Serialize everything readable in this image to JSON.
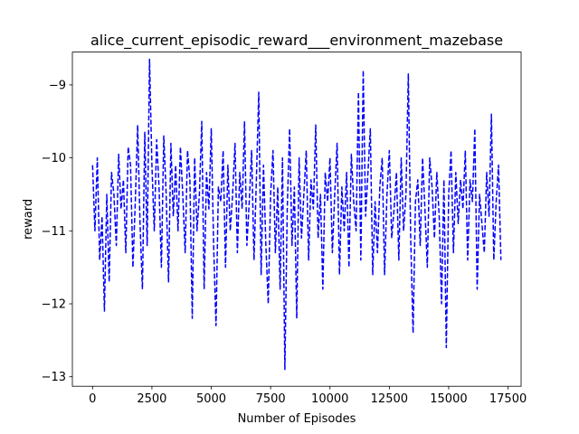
{
  "chart_data": {
    "type": "line",
    "title": "alice_current_episodic_reward___environment_mazebase",
    "xlabel": "Number of Episodes",
    "ylabel": "reward",
    "xlim": [
      -850,
      18050
    ],
    "ylim": [
      -13.13,
      -8.55
    ],
    "xticks": [
      0,
      2500,
      5000,
      7500,
      10000,
      12500,
      15000,
      17500
    ],
    "yticks": [
      -13,
      -12,
      -11,
      -10,
      -9
    ],
    "grid": false,
    "legend": "none",
    "series": [
      {
        "color": "#0000ff",
        "linestyle": "dashed",
        "x_start": 0,
        "x_step": 100,
        "values": [
          -10.1,
          -11.0,
          -10.0,
          -11.4,
          -10.8,
          -12.1,
          -10.5,
          -11.7,
          -10.2,
          -10.5,
          -11.2,
          -9.95,
          -10.7,
          -10.3,
          -11.3,
          -9.85,
          -10.1,
          -11.5,
          -10.6,
          -9.55,
          -10.9,
          -11.8,
          -9.65,
          -11.2,
          -8.65,
          -10.1,
          -11.0,
          -9.75,
          -10.4,
          -11.5,
          -9.7,
          -10.5,
          -11.7,
          -9.8,
          -10.8,
          -10.1,
          -11.0,
          -9.85,
          -10.5,
          -11.3,
          -9.9,
          -10.3,
          -12.2,
          -10.0,
          -11.0,
          -10.5,
          -9.5,
          -11.8,
          -10.2,
          -10.7,
          -9.6,
          -11.2,
          -12.3,
          -10.4,
          -10.6,
          -9.9,
          -11.5,
          -10.1,
          -11.0,
          -10.5,
          -9.8,
          -11.3,
          -10.2,
          -10.7,
          -9.5,
          -11.2,
          -10.6,
          -9.9,
          -11.4,
          -10.3,
          -9.1,
          -11.6,
          -10.1,
          -11.2,
          -12.0,
          -10.5,
          -9.9,
          -11.3,
          -10.4,
          -11.8,
          -10.0,
          -12.9,
          -10.7,
          -9.6,
          -11.2,
          -10.4,
          -12.2,
          -10.0,
          -11.1,
          -10.5,
          -9.9,
          -11.4,
          -10.3,
          -10.7,
          -9.55,
          -11.1,
          -10.5,
          -11.8,
          -10.2,
          -10.6,
          -10.0,
          -11.3,
          -10.5,
          -9.8,
          -11.6,
          -10.4,
          -11.0,
          -10.2,
          -11.5,
          -9.95,
          -10.6,
          -11.0,
          -9.1,
          -11.4,
          -8.8,
          -10.8,
          -10.2,
          -9.6,
          -11.6,
          -10.6,
          -11.3,
          -10.4,
          -10.0,
          -11.6,
          -10.5,
          -9.9,
          -11.1,
          -10.7,
          -10.2,
          -11.4,
          -10.0,
          -11.0,
          -10.5,
          -8.85,
          -11.1,
          -12.4,
          -10.6,
          -10.3,
          -11.2,
          -10.0,
          -10.7,
          -11.5,
          -10.0,
          -10.4,
          -11.1,
          -10.2,
          -10.8,
          -12.0,
          -10.3,
          -12.6,
          -10.5,
          -9.9,
          -11.3,
          -10.2,
          -10.9,
          -10.3,
          -10.7,
          -9.9,
          -11.4,
          -10.3,
          -10.6,
          -9.6,
          -11.8,
          -10.5,
          -10.9,
          -11.3,
          -10.2,
          -10.8,
          -9.4,
          -11.4,
          -10.6,
          -10.1,
          -11.4
        ]
      }
    ]
  }
}
